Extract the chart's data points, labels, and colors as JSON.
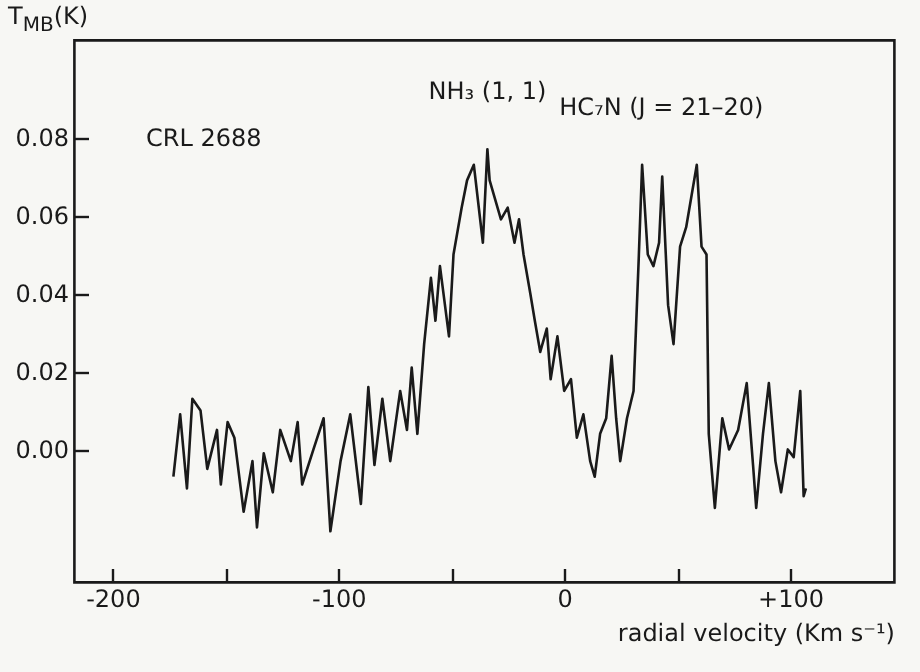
{
  "chart_data": {
    "type": "line",
    "xlabel": "radial velocity (Km s⁻¹)",
    "ylabel": "T$_{MB}$(K)",
    "annotations": [
      "CRL 2688",
      {
        "text": "NH₃ (1, 1)",
        "x": -34,
        "y": 0.077
      },
      {
        "text": "HC₇N (J = 21–20)",
        "x": 43,
        "y": 0.073
      }
    ],
    "series": [
      {
        "color": "#1a1a1a",
        "x": [
          -173,
          -170,
          -167,
          -164.6,
          -161,
          -158,
          -153.7,
          -152,
          -149,
          -146,
          -141.9,
          -138,
          -136,
          -133,
          -129,
          -125.7,
          -121,
          -118,
          -116,
          -111,
          -106.5,
          -103.5,
          -99,
          -94.7,
          -90,
          -86.7,
          -84,
          -80.5,
          -77,
          -72.6,
          -69.6,
          -67.5,
          -65,
          -62,
          -59,
          -57,
          -55,
          -51,
          -49,
          -45.4,
          -43,
          -40,
          -36,
          -34,
          -33,
          -28,
          -25,
          -22,
          -20,
          -18,
          -15,
          -13,
          -10.6,
          -7.7,
          -6,
          -3,
          0,
          3,
          5.6,
          8.5,
          11.5,
          13.5,
          15.9,
          18.6,
          21,
          23,
          24.8,
          27.8,
          30.7,
          33,
          34.5,
          37,
          39.5,
          42,
          43.4,
          46,
          48.4,
          51.3,
          54,
          58.7,
          60.8,
          63,
          64,
          66.7,
          70,
          73,
          77,
          80.8,
          83.6,
          85,
          88,
          90.6,
          93.5,
          96,
          99,
          101.6,
          104.5,
          106,
          107
        ],
        "values": [
          -0.007,
          0.009,
          -0.01,
          0.013,
          0.01,
          -0.005,
          0.005,
          -0.009,
          0.007,
          0.003,
          -0.016,
          -0.003,
          -0.02,
          -0.001,
          -0.011,
          0.005,
          -0.003,
          0.007,
          -0.009,
          0.0,
          0.008,
          -0.021,
          -0.003,
          0.009,
          -0.014,
          0.016,
          -0.004,
          0.013,
          -0.003,
          0.015,
          0.005,
          0.021,
          0.004,
          0.027,
          0.044,
          0.033,
          0.047,
          0.029,
          0.05,
          0.062,
          0.069,
          0.073,
          0.053,
          0.077,
          0.069,
          0.059,
          0.062,
          0.053,
          0.059,
          0.05,
          0.04,
          0.033,
          0.025,
          0.031,
          0.018,
          0.029,
          0.015,
          0.018,
          0.003,
          0.009,
          -0.003,
          -0.007,
          0.004,
          0.008,
          0.024,
          0.008,
          -0.003,
          0.008,
          0.015,
          0.049,
          0.073,
          0.05,
          0.047,
          0.053,
          0.07,
          0.037,
          0.027,
          0.052,
          0.057,
          0.073,
          0.052,
          0.05,
          0.004,
          -0.015,
          0.008,
          0.0,
          0.005,
          0.017,
          -0.004,
          -0.015,
          0.004,
          0.017,
          -0.003,
          -0.011,
          0.0,
          -0.002,
          0.015,
          -0.012,
          -0.01
        ]
      }
    ],
    "xlim": [
      -217,
      146
    ],
    "ylim": [
      -0.034,
      0.105
    ],
    "xticks": [
      -200,
      {
        "value": -150,
        "label": null
      },
      -100,
      {
        "value": -50,
        "label": null
      },
      0,
      {
        "value": 50,
        "label": null
      },
      {
        "value": 100,
        "label": "+100"
      }
    ],
    "yticks": [
      {
        "value": 0,
        "label": "0.00"
      },
      {
        "value": 0.02,
        "label": "0.02"
      },
      {
        "value": 0.04,
        "label": "0.04"
      },
      {
        "value": 0.06,
        "label": "0.06"
      },
      {
        "value": 0.08,
        "label": "0.08"
      }
    ],
    "grid": false,
    "marker": "none",
    "line_style": "solid"
  }
}
